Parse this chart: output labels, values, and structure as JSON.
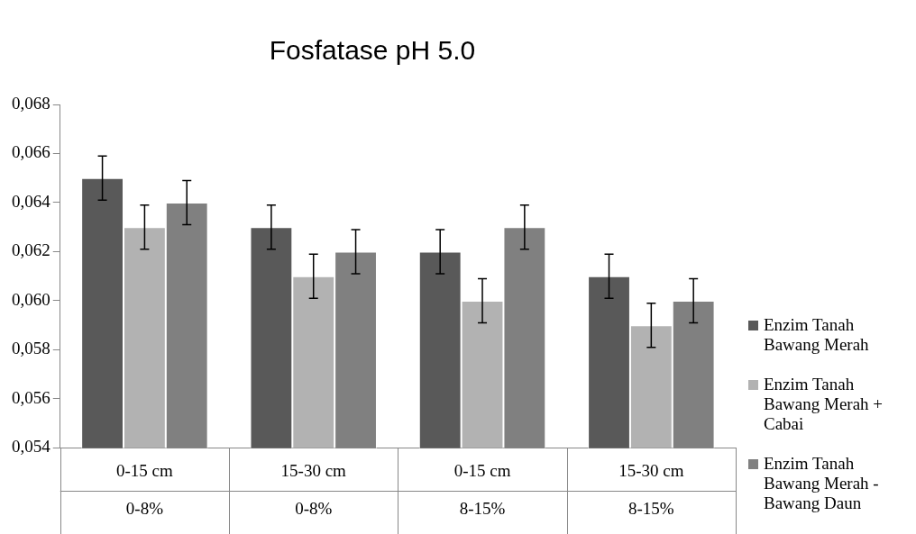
{
  "chart_data": {
    "type": "bar",
    "title": "Fosfatase pH 5.0",
    "categories": [
      "0-15 cm\n0-8%",
      "15-30 cm\n0-8%",
      "0-15 cm\n8-15%",
      "15-30 cm\n8-15%"
    ],
    "series": [
      {
        "name": "Enzim Tanah Bawang Merah",
        "color": "#595959",
        "values": [
          0.065,
          0.063,
          0.062,
          0.061
        ],
        "errors": [
          0.0009,
          0.0009,
          0.0009,
          0.0009
        ]
      },
      {
        "name": "Enzim Tanah Bawang Merah + Cabai",
        "color": "#b2b2b2",
        "values": [
          0.063,
          0.061,
          0.06,
          0.059
        ],
        "errors": [
          0.0009,
          0.0009,
          0.0009,
          0.0009
        ]
      },
      {
        "name": "Enzim Tanah Bawang Merah - Bawang Daun",
        "color": "#808080",
        "values": [
          0.064,
          0.062,
          0.063,
          0.06
        ],
        "errors": [
          0.0009,
          0.0009,
          0.0009,
          0.0009
        ]
      }
    ],
    "ylim": [
      0.054,
      0.068
    ],
    "yticks": [
      {
        "value": 0.054,
        "label": "0,054"
      },
      {
        "value": 0.056,
        "label": "0,056"
      },
      {
        "value": 0.058,
        "label": "0,058"
      },
      {
        "value": 0.06,
        "label": "0,060"
      },
      {
        "value": 0.062,
        "label": "0,062"
      },
      {
        "value": 0.064,
        "label": "0,064"
      },
      {
        "value": 0.066,
        "label": "0,066"
      },
      {
        "value": 0.068,
        "label": "0,068"
      }
    ],
    "grid": false,
    "legend": "right"
  }
}
